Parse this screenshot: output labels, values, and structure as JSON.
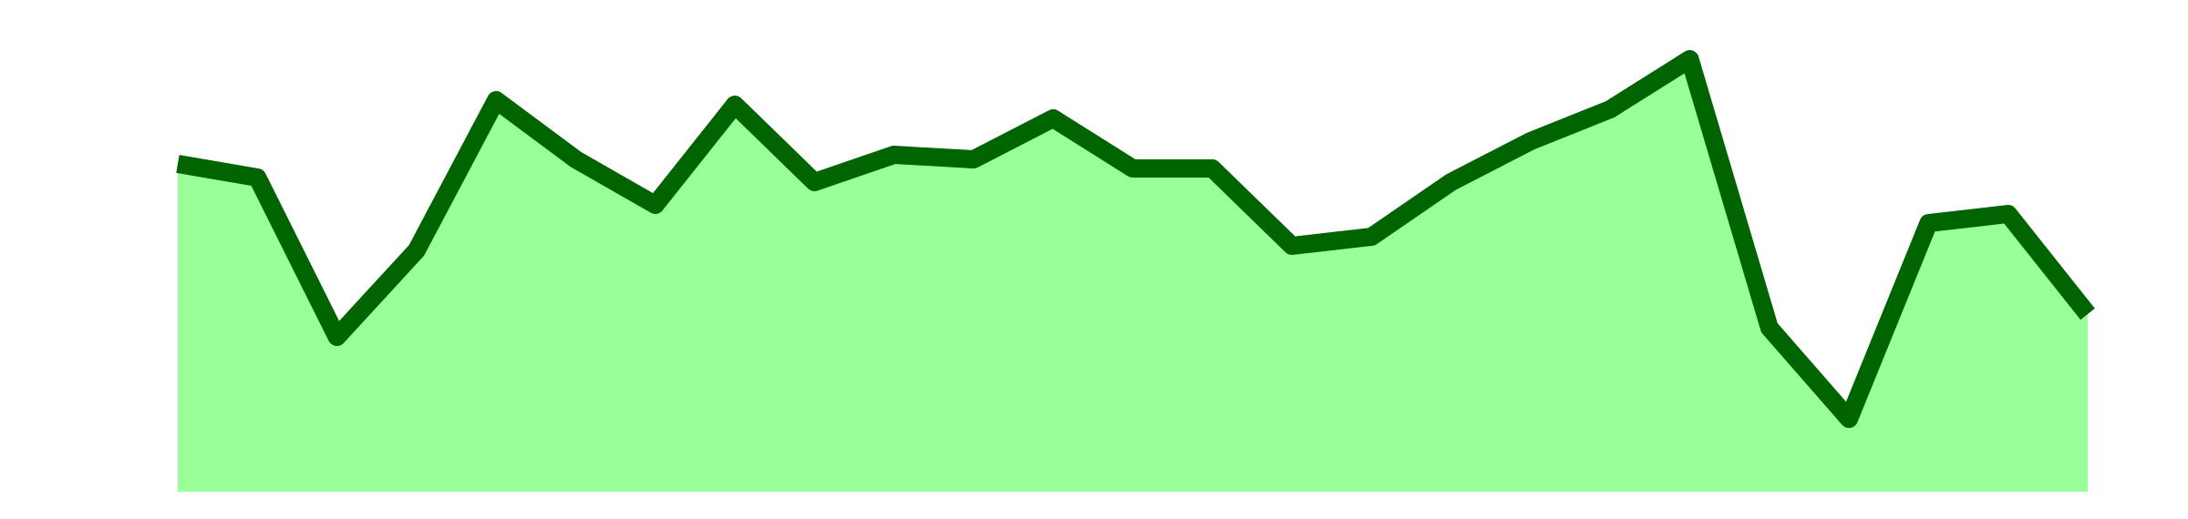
{
  "chart_data": {
    "type": "area",
    "values": [
      72,
      69,
      34,
      53,
      86,
      73,
      63,
      85,
      68,
      74,
      73,
      82,
      71,
      71,
      54,
      56,
      68,
      77,
      84,
      95,
      36,
      16,
      59,
      61,
      39
    ],
    "color": "#006400",
    "fill": "#99ff99",
    "ylim": [
      0,
      100
    ]
  }
}
